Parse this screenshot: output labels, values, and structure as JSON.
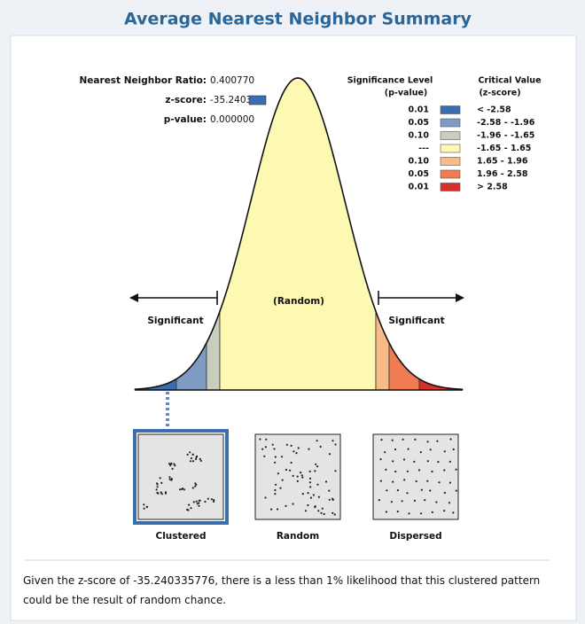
{
  "title": "Average Nearest Neighbor Summary",
  "stats": [
    {
      "label": "Nearest Neighbor Ratio:",
      "value": "0.400770"
    },
    {
      "label": "z-score:",
      "value": "-35.240336"
    },
    {
      "label": "p-value:",
      "value": "0.000000"
    }
  ],
  "legend": {
    "p_header": [
      "Significance Level",
      "(p-value)"
    ],
    "z_header": [
      "Critical Value",
      "(z-score)"
    ],
    "rows": [
      {
        "p": "0.01",
        "z": "< -2.58",
        "color": "#3a6db0"
      },
      {
        "p": "0.05",
        "z": "-2.58 - -1.96",
        "color": "#7e9bc2"
      },
      {
        "p": "0.10",
        "z": "-1.96 - -1.65",
        "color": "#c8cdbd"
      },
      {
        "p": "---",
        "z": "-1.65 - 1.65",
        "color": "#fdf8b2"
      },
      {
        "p": "0.10",
        "z": "1.65 - 1.96",
        "color": "#f8bb88"
      },
      {
        "p": "0.05",
        "z": "1.96 - 2.58",
        "color": "#ee7b52"
      },
      {
        "p": "0.01",
        "z": "> 2.58",
        "color": "#d8302a"
      }
    ]
  },
  "curve": {
    "center_label": "(Random)",
    "left_label": "Significant",
    "right_label": "Significant"
  },
  "patterns": [
    "Clustered",
    "Random",
    "Dispersed"
  ],
  "footer": "Given the z-score of -35.240335776, there is a less than 1% likelihood that this clustered pattern could be the result of random chance."
}
